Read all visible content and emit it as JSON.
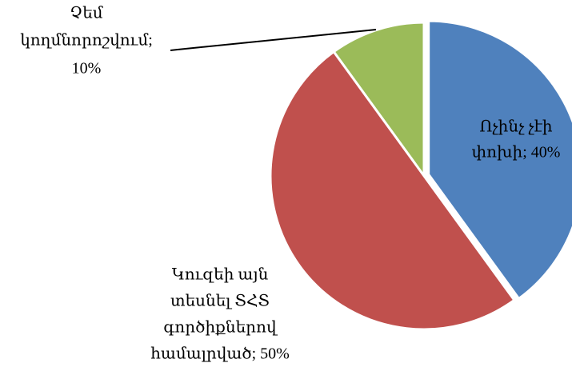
{
  "chart_data": {
    "type": "pie",
    "values": [
      40,
      50,
      10
    ],
    "value_labels": [
      [
        "Ոչինչ չէի",
        "փոխի; 40%"
      ],
      [
        "Կուզեի այն",
        "տեսնել ՏՀՏ",
        "գործիքներով",
        "համալրված; 50%"
      ],
      [
        "Չեմ",
        "կողմնորոշվում;",
        "10%"
      ]
    ],
    "colors": [
      "#4f81bd",
      "#c0504d",
      "#9bbb59"
    ]
  }
}
